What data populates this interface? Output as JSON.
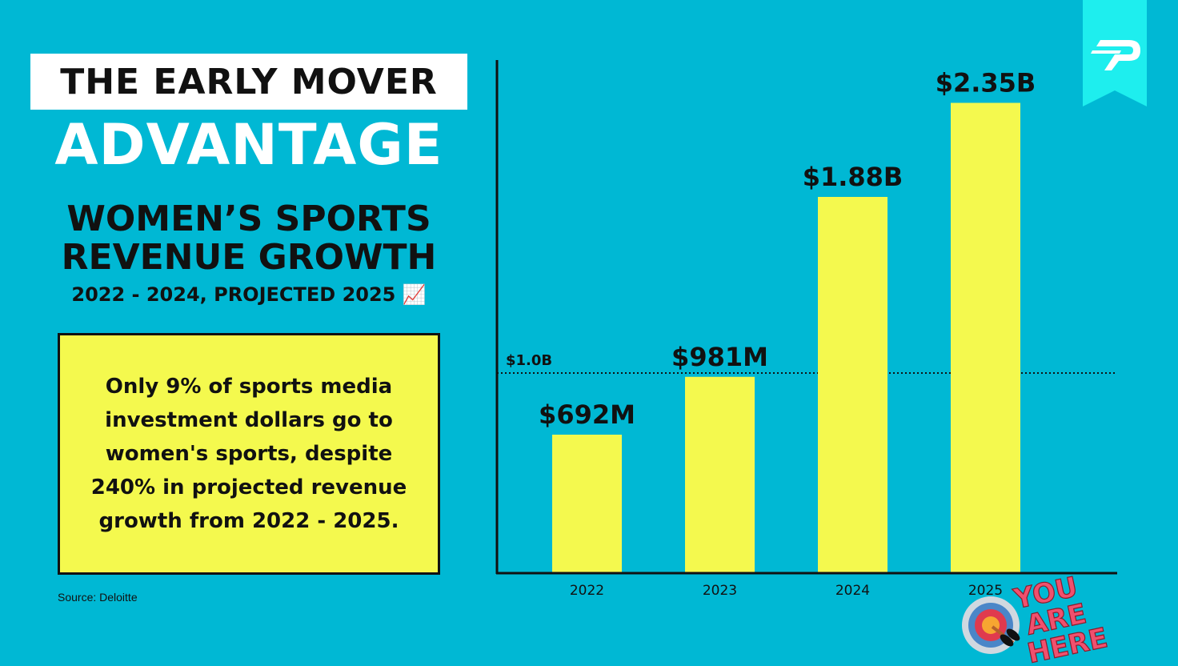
{
  "header": {
    "line1": "THE EARLY MOVER",
    "line2": "ADVANTAGE",
    "subtitle_line1": "WOMEN’S SPORTS",
    "subtitle_line2": "REVENUE GROWTH",
    "subtitle_line3": "2022 - 2024, PROJECTED 2025 📈"
  },
  "callout": {
    "text": "Only 9% of sports media investment dollars go to women's sports, despite 240% in projected revenue growth from 2022 - 2025."
  },
  "source": "Source: Deloitte",
  "badge": {
    "text": "YOU ARE HERE",
    "icon": "target-icon"
  },
  "logo": {
    "icon": "p-logo-icon"
  },
  "colors": {
    "background": "#00b8d4",
    "bar": "#f4f94e",
    "badge_text": "#f0506e",
    "ribbon": "#1eeeee"
  },
  "chart_data": {
    "type": "bar",
    "categories": [
      "2022",
      "2023",
      "2024",
      "2025"
    ],
    "values": [
      0.692,
      0.981,
      1.88,
      2.35
    ],
    "data_labels": [
      "$692M",
      "$981M",
      "$1.88B",
      "$2.35B"
    ],
    "unit": "billions USD",
    "ylim": [
      0,
      2.6
    ],
    "reference_line": {
      "value": 1.0,
      "label": "$1.0B",
      "style": "dotted"
    },
    "grid": false
  }
}
